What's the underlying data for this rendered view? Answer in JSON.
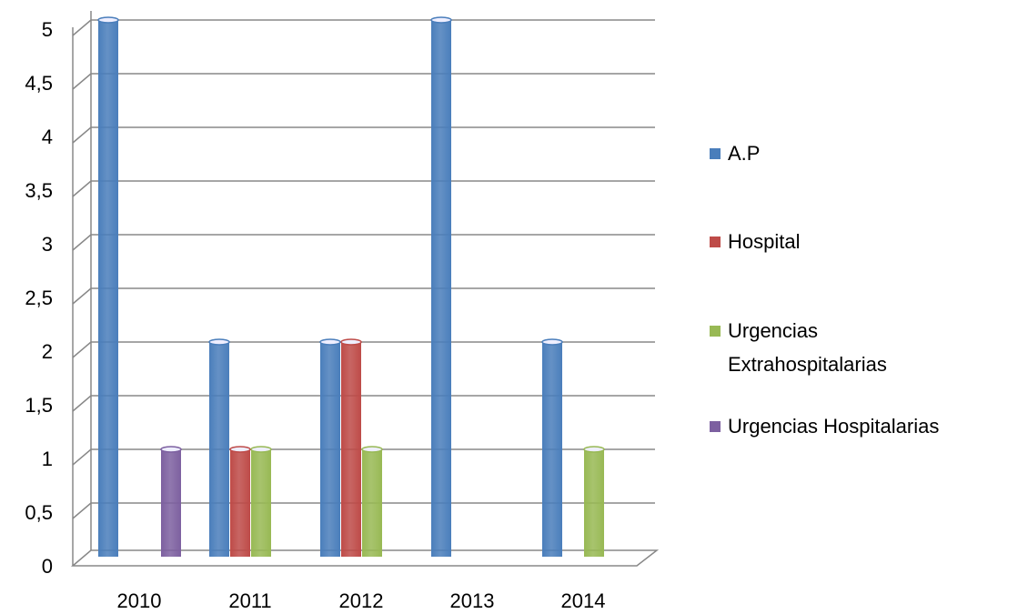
{
  "chart_data": {
    "type": "bar",
    "categories": [
      "2010",
      "2011",
      "2012",
      "2013",
      "2014"
    ],
    "series": [
      {
        "name": "A.P",
        "color": "#4a7ebb",
        "values": [
          5,
          2,
          2,
          5,
          2
        ]
      },
      {
        "name": "Hospital",
        "color": "#be4b48",
        "values": [
          0,
          1,
          2,
          0,
          0
        ]
      },
      {
        "name": "Urgencias Extrahospitalarias",
        "color": "#98b954",
        "values": [
          0,
          1,
          1,
          0,
          1
        ]
      },
      {
        "name": "Urgencias Hospitalarias",
        "color": "#7d60a0",
        "values": [
          1,
          0,
          0,
          0,
          0
        ]
      }
    ],
    "ylim": [
      0,
      5
    ],
    "yticks": [
      0,
      {
        "value": 0.5,
        "label": "0,5"
      },
      1,
      {
        "value": 1.5,
        "label": "1,5"
      },
      2,
      {
        "value": 2.5,
        "label": "2,5"
      },
      3,
      {
        "value": 3.5,
        "label": "3,5"
      },
      4,
      {
        "value": 4.5,
        "label": "4,5"
      },
      5
    ],
    "grid": true,
    "legend": "right"
  }
}
